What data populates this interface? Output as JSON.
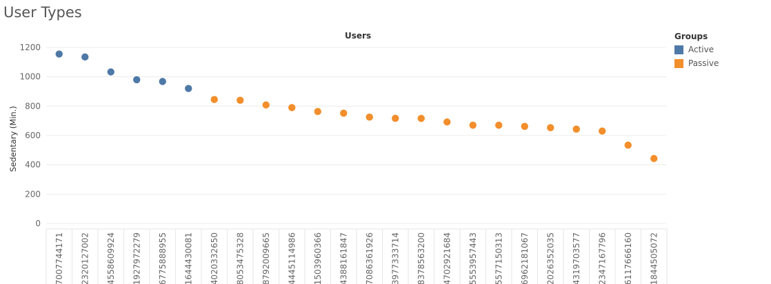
{
  "chart_data": {
    "type": "scatter",
    "title": "User Types",
    "xlabel": "Users",
    "ylabel": "Sedentary (Min.)",
    "ylim": [
      0,
      1200
    ],
    "yticks": [
      0,
      200,
      400,
      600,
      800,
      1000,
      1200
    ],
    "grid": true,
    "legend": {
      "title": "Groups",
      "placement": "top-right",
      "items": [
        {
          "name": "Active",
          "color": "#4e79a7"
        },
        {
          "name": "Passive",
          "color": "#f28e2b"
        }
      ]
    },
    "points": [
      {
        "x": "7007744171",
        "y": 1155,
        "group": "Active"
      },
      {
        "x": "2320127002",
        "y": 1135,
        "group": "Active"
      },
      {
        "x": "4558609924",
        "y": 1033,
        "group": "Active"
      },
      {
        "x": "1927972279",
        "y": 980,
        "group": "Active"
      },
      {
        "x": "6775888955",
        "y": 968,
        "group": "Active"
      },
      {
        "x": "1644430081",
        "y": 920,
        "group": "Active"
      },
      {
        "x": "4020332650",
        "y": 845,
        "group": "Passive"
      },
      {
        "x": "8053475328",
        "y": 840,
        "group": "Passive"
      },
      {
        "x": "8792009665",
        "y": 808,
        "group": "Passive"
      },
      {
        "x": "4445114986",
        "y": 790,
        "group": "Passive"
      },
      {
        "x": "1503960366",
        "y": 763,
        "group": "Passive"
      },
      {
        "x": "4388161847",
        "y": 752,
        "group": "Passive"
      },
      {
        "x": "7086361926",
        "y": 725,
        "group": "Passive"
      },
      {
        "x": "3977333714",
        "y": 717,
        "group": "Passive"
      },
      {
        "x": "8378563200",
        "y": 716,
        "group": "Passive"
      },
      {
        "x": "4702921684",
        "y": 692,
        "group": "Passive"
      },
      {
        "x": "5553957443",
        "y": 670,
        "group": "Passive"
      },
      {
        "x": "5577150313",
        "y": 670,
        "group": "Passive"
      },
      {
        "x": "6962181067",
        "y": 662,
        "group": "Passive"
      },
      {
        "x": "2026352035",
        "y": 653,
        "group": "Passive"
      },
      {
        "x": "4319703577",
        "y": 643,
        "group": "Passive"
      },
      {
        "x": "2347167796",
        "y": 630,
        "group": "Passive"
      },
      {
        "x": "6117666160",
        "y": 534,
        "group": "Passive"
      },
      {
        "x": "1844505072",
        "y": 443,
        "group": "Passive"
      }
    ]
  }
}
